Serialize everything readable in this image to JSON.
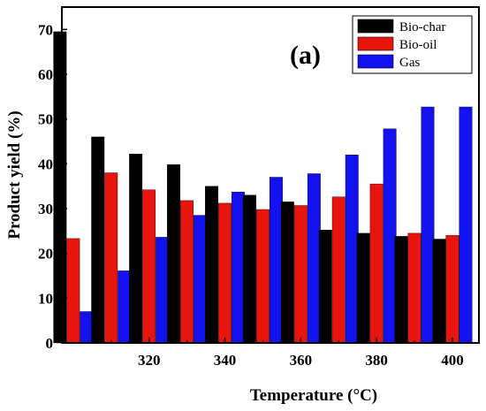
{
  "chart_data": {
    "type": "bar",
    "panel_label": "(a)",
    "xlabel": "Temperature (°C)",
    "ylabel": "Product yield (%)",
    "ylim": [
      0,
      75
    ],
    "yticks": [
      0,
      10,
      20,
      30,
      40,
      50,
      60,
      70
    ],
    "xticks": [
      320,
      340,
      360,
      380,
      400
    ],
    "xlim": [
      297,
      407
    ],
    "categories": [
      300,
      310,
      320,
      330,
      340,
      350,
      360,
      370,
      380,
      390,
      400
    ],
    "series": [
      {
        "name": "Bio-char",
        "color": "#000000",
        "values": [
          69.5,
          46.0,
          42.2,
          39.8,
          35.0,
          33.0,
          31.5,
          25.2,
          24.5,
          23.8,
          23.2
        ]
      },
      {
        "name": "Bio-oil",
        "color": "#e8150f",
        "values": [
          23.3,
          38.0,
          34.2,
          31.8,
          31.2,
          29.8,
          30.7,
          32.6,
          35.5,
          24.5,
          24.0
        ]
      },
      {
        "name": "Gas",
        "color": "#1212f0",
        "values": [
          7.0,
          16.1,
          23.6,
          28.5,
          33.7,
          37.0,
          37.8,
          42.0,
          47.8,
          52.7,
          52.7
        ]
      }
    ],
    "legend_position": "top-right",
    "grid": false
  }
}
